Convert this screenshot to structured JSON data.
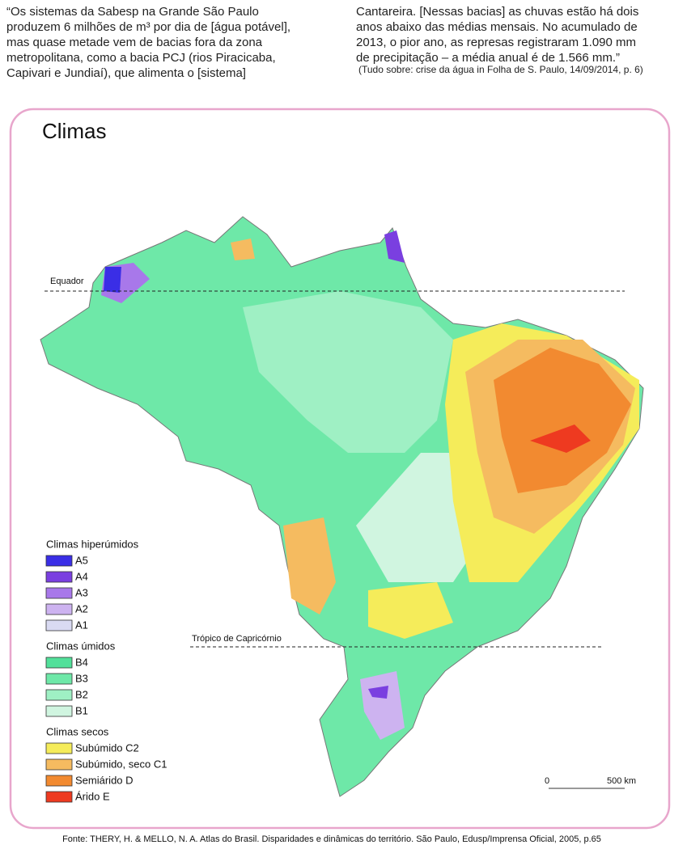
{
  "quote": {
    "left_lines": [
      "“Os sistemas da Sabesp na Grande São Paulo",
      "produzem 6 milhões de m³ por dia de [água potável],",
      "mas quase metade vem de bacias fora da zona",
      "metropolitana, como a bacia PCJ (rios Piracicaba,",
      "Capivari e Jundiaí), que alimenta o [sistema]"
    ],
    "right_lines": [
      "Cantareira. [Nessas bacias] as chuvas estão há dois",
      "anos abaixo das médias mensais. No acumulado de",
      "2013, o pior ano, as represas registraram 1.090 mm",
      "de precipitação – a média anual é de 1.566 mm.”"
    ],
    "citation": "(Tudo sobre: crise da água in Folha de S. Paulo, 14/09/2014, p. 6)"
  },
  "map": {
    "title": "Climas",
    "equator_label": "Equador",
    "tropic_label": "Trópico de Capricórnio",
    "legend": [
      {
        "title": "Climas hiperúmidos",
        "items": [
          {
            "label": "A5",
            "color": "#3a2ee6"
          },
          {
            "label": "A4",
            "color": "#7a3fe0"
          },
          {
            "label": "A3",
            "color": "#a878ea"
          },
          {
            "label": "A2",
            "color": "#cdb3f0"
          },
          {
            "label": "A1",
            "color": "#d9daf2"
          }
        ]
      },
      {
        "title": "Climas úmidos",
        "items": [
          {
            "label": "B4",
            "color": "#52e09a"
          },
          {
            "label": "B3",
            "color": "#6ee8a8"
          },
          {
            "label": "B2",
            "color": "#9ff0c4"
          },
          {
            "label": "B1",
            "color": "#d0f5e0"
          }
        ]
      },
      {
        "title": "Climas secos",
        "items": [
          {
            "label": "Subúmido C2",
            "color": "#f5ec5a"
          },
          {
            "label": "Subúmido, seco C1",
            "color": "#f5bb60"
          },
          {
            "label": "Semiárido D",
            "color": "#f28a30"
          },
          {
            "label": "Árido E",
            "color": "#ee3a20"
          }
        ]
      }
    ],
    "scale_zero": "0",
    "scale_label": "500 km"
  },
  "source": "Fonte: THERY, H. & MELLO, N. A. Atlas do Brasil. Disparidades e dinâmicas do território. São Paulo, Edusp/Imprensa Oficial, 2005, p.65"
}
